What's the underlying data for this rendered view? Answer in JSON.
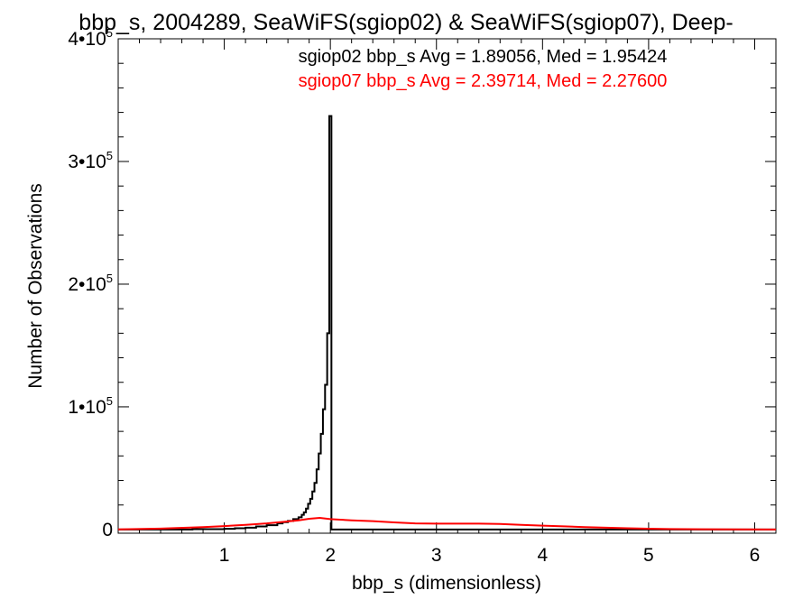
{
  "chart_data": {
    "type": "line",
    "title": "bbp_s, 2004289, SeaWiFS(sgiop02) & SeaWiFS(sgiop07), Deep-",
    "xlabel": "bbp_s (dimensionless)",
    "ylabel": "Number of Observations",
    "xlim": [
      0,
      6.2
    ],
    "ylim": [
      -3000,
      400000
    ],
    "grid": false,
    "x_ticks": [
      1,
      2,
      3,
      4,
      5,
      6
    ],
    "x_tick_labels": [
      "1",
      "2",
      "3",
      "4",
      "5",
      "6"
    ],
    "y_ticks": [
      0,
      100000,
      200000,
      300000,
      400000
    ],
    "y_tick_labels": [
      {
        "text": "0",
        "mantissa": "",
        "exp": ""
      },
      {
        "text": "",
        "mantissa": "1•10",
        "exp": "5"
      },
      {
        "text": "",
        "mantissa": "2•10",
        "exp": "5"
      },
      {
        "text": "",
        "mantissa": "3•10",
        "exp": "5"
      },
      {
        "text": "",
        "mantissa": "4•10",
        "exp": "5"
      }
    ],
    "legend_placement": "top-center",
    "series": [
      {
        "name": "sgiop02 bbp_s Avg = 1.89056, Med = 1.95424",
        "color": "#000000",
        "style": "step",
        "x": [
          0.0,
          0.7,
          1.0,
          1.1,
          1.2,
          1.3,
          1.4,
          1.5,
          1.55,
          1.6,
          1.65,
          1.7,
          1.73,
          1.75,
          1.77,
          1.79,
          1.81,
          1.83,
          1.85,
          1.87,
          1.89,
          1.91,
          1.93,
          1.95,
          1.97,
          1.99,
          2.01,
          2.03,
          2.1,
          2.5,
          6.2
        ],
        "y": [
          0,
          300,
          600,
          1000,
          1500,
          2500,
          3500,
          5000,
          6000,
          7000,
          8500,
          10000,
          12000,
          14000,
          17000,
          21000,
          25000,
          31000,
          38000,
          49000,
          62000,
          78000,
          98000,
          118000,
          160000,
          337000,
          0,
          0,
          0,
          0,
          0
        ]
      },
      {
        "name": "sgiop07 bbp_s Avg = 2.39714, Med = 2.27600",
        "color": "#ff0000",
        "style": "line",
        "x": [
          0.0,
          0.4,
          0.8,
          1.0,
          1.2,
          1.4,
          1.55,
          1.7,
          1.8,
          1.9,
          2.0,
          2.2,
          2.4,
          2.6,
          2.8,
          3.0,
          3.2,
          3.4,
          3.6,
          3.8,
          4.0,
          4.2,
          4.4,
          4.6,
          4.8,
          5.0,
          5.2,
          5.5,
          5.8,
          6.2
        ],
        "y": [
          100,
          800,
          2000,
          2800,
          3800,
          5000,
          6200,
          7500,
          8800,
          9500,
          8500,
          7500,
          6800,
          5800,
          5000,
          4800,
          4800,
          4800,
          4500,
          3800,
          3200,
          2600,
          2000,
          1500,
          1000,
          700,
          400,
          200,
          100,
          0
        ]
      }
    ]
  }
}
